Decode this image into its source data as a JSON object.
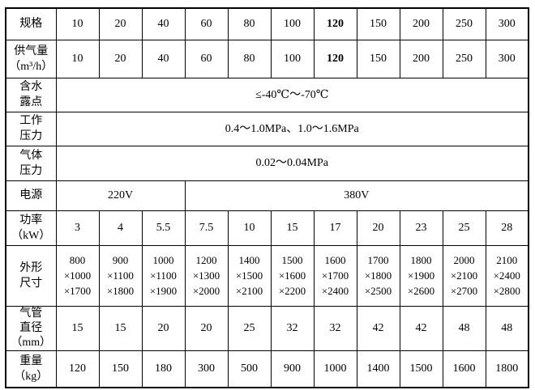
{
  "colors": {
    "background": "#ffffff",
    "border": "#000000",
    "text": "#000000"
  },
  "table": {
    "rows": [
      {
        "label": "规格",
        "values": [
          "10",
          "20",
          "40",
          "60",
          "80",
          "100",
          "120",
          "150",
          "200",
          "250",
          "300"
        ]
      },
      {
        "label": "供气量\n（m³/h）",
        "values": [
          "10",
          "20",
          "40",
          "60",
          "80",
          "100",
          "120",
          "150",
          "200",
          "250",
          "300"
        ]
      },
      {
        "label": "含水\n露点",
        "value": "≤-40℃～-70℃"
      },
      {
        "label": "工作\n压力",
        "value": "0.4～1.0MPa、1.0～1.6MPa"
      },
      {
        "label": "气体\n压力",
        "value": "0.02～0.04MPa"
      },
      {
        "label": "电源",
        "left_value": "220V",
        "right_value": "380V"
      },
      {
        "label": "功率\n（kW）",
        "values": [
          "3",
          "4",
          "5.5",
          "7.5",
          "10",
          "15",
          "17",
          "20",
          "23",
          "25",
          "28"
        ]
      },
      {
        "label": "外形\n尺寸",
        "values": [
          "800\n×1000\n×1700",
          "900\n×1100\n×1800",
          "1000\n×1100\n×1900",
          "1200\n×1300\n×2000",
          "1400\n×1500\n×2100",
          "1500\n×1600\n×2200",
          "1600\n×1700\n×2400",
          "1700\n×1800\n×2500",
          "1800\n×1900\n×2600",
          "2000\n×2100\n×2700",
          "2100\n×2400\n×2800"
        ]
      },
      {
        "label": "气管\n直径\n（mm）",
        "values": [
          "15",
          "15",
          "20",
          "20",
          "25",
          "32",
          "32",
          "42",
          "42",
          "48",
          "48"
        ]
      },
      {
        "label": "重量\n（kg）",
        "values": [
          "120",
          "150",
          "180",
          "300",
          "500",
          "900",
          "1000",
          "1400",
          "1500",
          "1600",
          "1800"
        ]
      }
    ]
  }
}
